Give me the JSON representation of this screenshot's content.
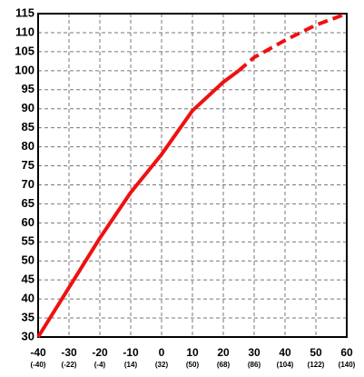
{
  "chart_data": {
    "type": "line",
    "xlim": [
      -40,
      60
    ],
    "ylim": [
      30,
      115
    ],
    "xticks": [
      -40,
      -30,
      -20,
      -10,
      0,
      10,
      20,
      30,
      40,
      50,
      60
    ],
    "x2ticks": [
      {
        "value": -40,
        "label": "(-40)"
      },
      {
        "value": -30,
        "label": "(-22)"
      },
      {
        "value": -20,
        "label": "(-4)"
      },
      {
        "value": -10,
        "label": "(14)"
      },
      {
        "value": 0,
        "label": "(32)"
      },
      {
        "value": 10,
        "label": "(50)"
      },
      {
        "value": 20,
        "label": "(68)"
      },
      {
        "value": 30,
        "label": "(86)"
      },
      {
        "value": 40,
        "label": "(104)"
      },
      {
        "value": 50,
        "label": "(122)"
      },
      {
        "value": 60,
        "label": "(140)"
      }
    ],
    "yticks": [
      30,
      35,
      40,
      45,
      50,
      55,
      60,
      65,
      70,
      75,
      80,
      85,
      90,
      95,
      100,
      105,
      110,
      115
    ],
    "grid": true,
    "series": [
      {
        "color": "#ee1111",
        "dash": false,
        "x": [
          -40,
          -30,
          -20,
          -10,
          0,
          10,
          20,
          25
        ],
        "values": [
          30,
          43,
          56,
          68,
          78,
          89.5,
          97,
          100
        ]
      },
      {
        "color": "#ee1111",
        "dash": true,
        "x": [
          25,
          30,
          40,
          50,
          60
        ],
        "values": [
          100,
          103.5,
          108,
          112,
          115
        ]
      }
    ]
  }
}
